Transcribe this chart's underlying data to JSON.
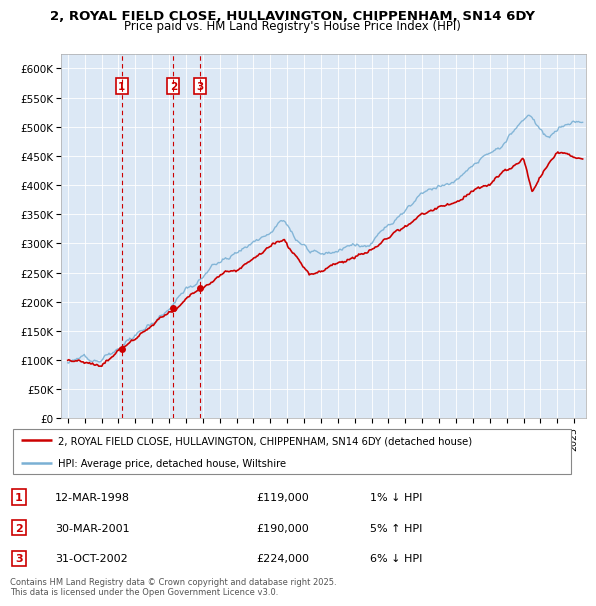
{
  "title_line1": "2, ROYAL FIELD CLOSE, HULLAVINGTON, CHIPPENHAM, SN14 6DY",
  "title_line2": "Price paid vs. HM Land Registry's House Price Index (HPI)",
  "legend_entries": [
    "2, ROYAL FIELD CLOSE, HULLAVINGTON, CHIPPENHAM, SN14 6DY (detached house)",
    "HPI: Average price, detached house, Wiltshire"
  ],
  "transactions": [
    {
      "num": 1,
      "date": "12-MAR-1998",
      "price": 119000,
      "pct": "1%",
      "dir": "↓",
      "year": 1998.2
    },
    {
      "num": 2,
      "date": "30-MAR-2001",
      "price": 190000,
      "pct": "5%",
      "dir": "↑",
      "year": 2001.25
    },
    {
      "num": 3,
      "date": "31-OCT-2002",
      "price": 224000,
      "pct": "6%",
      "dir": "↓",
      "year": 2002.83
    }
  ],
  "footer": "Contains HM Land Registry data © Crown copyright and database right 2025.\nThis data is licensed under the Open Government Licence v3.0.",
  "ylim": [
    0,
    625000
  ],
  "yticks": [
    0,
    50000,
    100000,
    150000,
    200000,
    250000,
    300000,
    350000,
    400000,
    450000,
    500000,
    550000,
    600000
  ],
  "ytick_labels": [
    "£0",
    "£50K",
    "£100K",
    "£150K",
    "£200K",
    "£250K",
    "£300K",
    "£350K",
    "£400K",
    "£450K",
    "£500K",
    "£550K",
    "£600K"
  ],
  "red_line_color": "#cc0000",
  "blue_line_color": "#7ab0d4",
  "transaction_box_color": "#cc0000",
  "dashed_line_color": "#cc0000",
  "plot_bg_color": "#dce8f5",
  "xlim_left": 1994.6,
  "xlim_right": 2025.7
}
